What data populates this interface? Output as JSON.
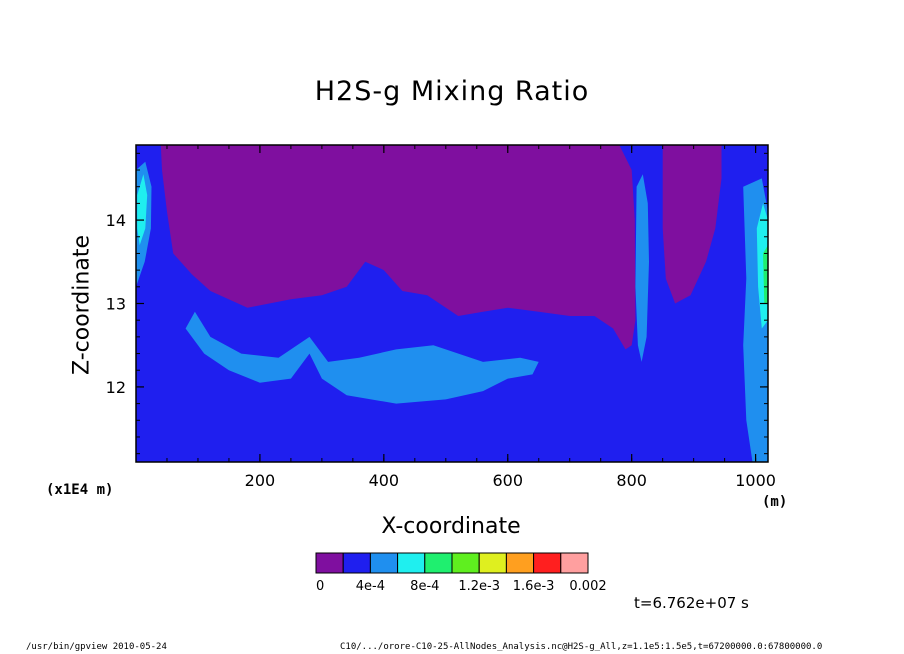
{
  "chart_data": {
    "type": "heatmap",
    "title": "H2S-g Mixing Ratio",
    "xlabel": "X-coordinate",
    "ylabel": "Z-coordinate",
    "x_scale_label": "(x1E4 m)",
    "x_unit_label": "(m)",
    "xlim": [
      0,
      1020
    ],
    "ylim": [
      11.1,
      14.9
    ],
    "x_ticks": [
      200,
      400,
      600,
      800,
      1000
    ],
    "x_tick_labels": [
      "200",
      "400",
      "600",
      "800",
      "1000"
    ],
    "y_ticks": [
      12,
      13,
      14
    ],
    "y_tick_labels": [
      "12",
      "13",
      "14"
    ],
    "colorbar": {
      "colors": [
        "#7f0f9f",
        "#1f1fef",
        "#1f8fef",
        "#1fefef",
        "#1fef6f",
        "#5fef1f",
        "#dfef1f",
        "#ff9f1f",
        "#ff1f1f",
        "#ff9f9f"
      ],
      "tick_labels": [
        "0",
        "4e-4",
        "8e-4",
        "1.2e-3",
        "1.6e-3",
        "0.002"
      ]
    },
    "regions": [
      {
        "level": 0,
        "color": "#7f0f9f",
        "description": "Low mixing ratio in upper domain"
      },
      {
        "level": 1,
        "color": "#1f1fef",
        "description": "Background lower domain"
      },
      {
        "level": 2,
        "color": "#1f8fef",
        "description": "Elevated band near z=12"
      },
      {
        "level": 3,
        "color": "#1fefef",
        "description": "Edges of domain"
      },
      {
        "level": 4,
        "color": "#1fef6f",
        "description": "Right edge maximum"
      }
    ],
    "time_label": "t=6.762e+07 s"
  },
  "footer": {
    "left": "/usr/bin/gpview   2010-05-24",
    "right": "C10/.../orore-C10-25-AllNodes_Analysis.nc@H2S-g_All,z=1.1e5:1.5e5,t=67200000.0:67800000.0"
  }
}
